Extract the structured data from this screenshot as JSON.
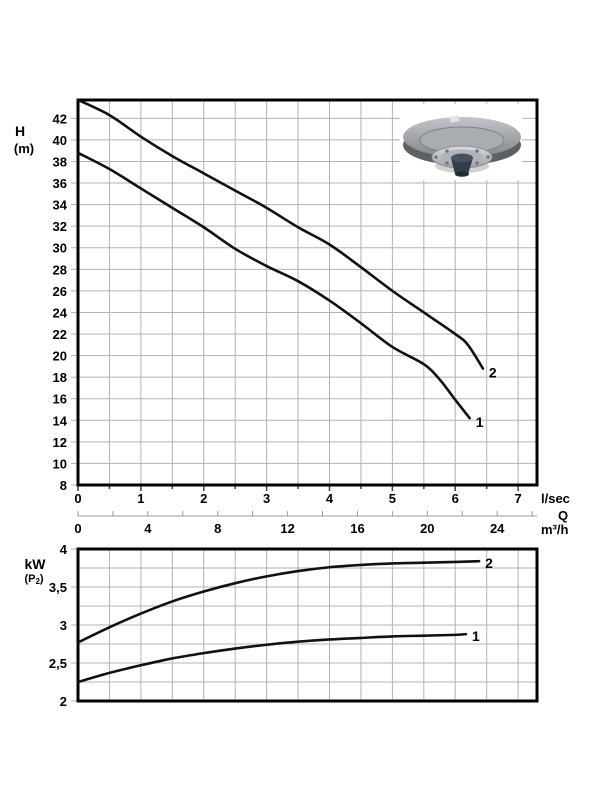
{
  "page": {
    "background": "#ffffff"
  },
  "colors": {
    "grid": "#b3b3b3",
    "border": "#000000",
    "curve": "#111111",
    "q_axis": "#999999",
    "tick_mark": "#444444"
  },
  "pump_image": {
    "description": "pump impeller photo"
  },
  "chart_data": [
    {
      "type": "line",
      "title": "",
      "ylabel_line1": "H",
      "ylabel_line2": "(m)",
      "x_unit_label": "l/sec",
      "x2_unit_line1": "Q",
      "x2_unit_line2": "m³/h",
      "xlim": [
        0,
        7.3
      ],
      "ylim": [
        8,
        43.7
      ],
      "grid": true,
      "x_grid": [
        0.5,
        1,
        1.5,
        2,
        2.5,
        3,
        3.5,
        4,
        4.5,
        5,
        5.5,
        6,
        6.5,
        7
      ],
      "y_grid": [
        10,
        12,
        14,
        16,
        18,
        20,
        22,
        24,
        26,
        28,
        30,
        32,
        34,
        36,
        38,
        40,
        42
      ],
      "y_ticks": [
        {
          "v": 42,
          "label": "42"
        },
        {
          "v": 40,
          "label": "40"
        },
        {
          "v": 38,
          "label": "38"
        },
        {
          "v": 36,
          "label": "36"
        },
        {
          "v": 34,
          "label": "34"
        },
        {
          "v": 32,
          "label": "32"
        },
        {
          "v": 30,
          "label": "30"
        },
        {
          "v": 28,
          "label": "28"
        },
        {
          "v": 26,
          "label": "26"
        },
        {
          "v": 24,
          "label": "24"
        },
        {
          "v": 22,
          "label": "22"
        },
        {
          "v": 20,
          "label": "20"
        },
        {
          "v": 18,
          "label": "18"
        },
        {
          "v": 16,
          "label": "16"
        },
        {
          "v": 14,
          "label": "14"
        },
        {
          "v": 12,
          "label": "12"
        },
        {
          "v": 10,
          "label": "10"
        },
        {
          "v": 8,
          "label": "8"
        }
      ],
      "x_ticks": [
        {
          "v": 0,
          "label": "0"
        },
        {
          "v": 1,
          "label": "1"
        },
        {
          "v": 2,
          "label": "2"
        },
        {
          "v": 3,
          "label": "3"
        },
        {
          "v": 4,
          "label": "4"
        },
        {
          "v": 5,
          "label": "5"
        },
        {
          "v": 6,
          "label": "6"
        },
        {
          "v": 7,
          "label": "7"
        }
      ],
      "x_minor_ticks": [
        0,
        0.5,
        1,
        1.5,
        2,
        2.5,
        3,
        3.5,
        4,
        4.5,
        5,
        5.5,
        6,
        6.5,
        7
      ],
      "x2_axis": {
        "scale_lsec_per_unit": 0.27778,
        "minor_ticks": [
          0,
          2,
          4,
          6,
          8,
          10,
          12,
          14,
          16,
          18,
          20,
          22,
          24,
          26
        ],
        "labeled_ticks": [
          {
            "v": 0,
            "label": "0"
          },
          {
            "v": 4,
            "label": "4"
          },
          {
            "v": 8,
            "label": "8"
          },
          {
            "v": 12,
            "label": "12"
          },
          {
            "v": 16,
            "label": "16"
          },
          {
            "v": 20,
            "label": "20"
          },
          {
            "v": 24,
            "label": "24"
          }
        ]
      },
      "series": [
        {
          "name": "1",
          "points": [
            [
              0,
              38.8
            ],
            [
              0.5,
              37.3
            ],
            [
              1,
              35.5
            ],
            [
              1.5,
              33.7
            ],
            [
              2,
              31.9
            ],
            [
              2.5,
              29.9
            ],
            [
              3,
              28.3
            ],
            [
              3.5,
              26.9
            ],
            [
              4,
              25.1
            ],
            [
              4.5,
              23.0
            ],
            [
              5,
              20.8
            ],
            [
              5.5,
              19.2
            ],
            [
              5.75,
              17.8
            ],
            [
              6,
              15.9
            ],
            [
              6.23,
              14.2
            ]
          ]
        },
        {
          "name": "2",
          "points": [
            [
              0,
              43.7
            ],
            [
              0.5,
              42.3
            ],
            [
              1,
              40.3
            ],
            [
              1.5,
              38.5
            ],
            [
              2,
              36.9
            ],
            [
              2.5,
              35.3
            ],
            [
              3,
              33.7
            ],
            [
              3.5,
              31.9
            ],
            [
              4,
              30.3
            ],
            [
              4.5,
              28.2
            ],
            [
              5,
              26.0
            ],
            [
              5.5,
              24.0
            ],
            [
              6,
              22.0
            ],
            [
              6.2,
              21.0
            ],
            [
              6.44,
              18.8
            ]
          ]
        }
      ],
      "label_dy": 4
    },
    {
      "type": "line",
      "title": "",
      "ylabel_line1": "kW",
      "ylabel_sub": {
        "prefix": "(P",
        "sub": "2",
        "suffix": ")"
      },
      "xlim": [
        0,
        7.3
      ],
      "ylim": [
        2,
        4
      ],
      "grid": true,
      "x_grid": [
        0.5,
        1,
        1.5,
        2,
        2.5,
        3,
        3.5,
        4,
        4.5,
        5,
        5.5,
        6,
        6.5,
        7
      ],
      "y_grid": [
        2.25,
        2.5,
        2.75,
        3,
        3.25,
        3.5,
        3.75
      ],
      "y_ticks": [
        {
          "v": 4,
          "label": "4"
        },
        {
          "v": 3.5,
          "label": "3,5"
        },
        {
          "v": 3,
          "label": "3"
        },
        {
          "v": 2.5,
          "label": "2,5"
        },
        {
          "v": 2,
          "label": "2"
        }
      ],
      "series": [
        {
          "name": "1",
          "points": [
            [
              0,
              2.25
            ],
            [
              0.5,
              2.37
            ],
            [
              1,
              2.47
            ],
            [
              1.5,
              2.56
            ],
            [
              2,
              2.63
            ],
            [
              2.5,
              2.69
            ],
            [
              3,
              2.74
            ],
            [
              3.5,
              2.78
            ],
            [
              4,
              2.81
            ],
            [
              4.5,
              2.83
            ],
            [
              5,
              2.85
            ],
            [
              5.5,
              2.86
            ],
            [
              6,
              2.87
            ],
            [
              6.17,
              2.88
            ]
          ]
        },
        {
          "name": "2",
          "points": [
            [
              0,
              2.77
            ],
            [
              0.5,
              2.97
            ],
            [
              1,
              3.15
            ],
            [
              1.5,
              3.31
            ],
            [
              2,
              3.44
            ],
            [
              2.5,
              3.55
            ],
            [
              3,
              3.64
            ],
            [
              3.5,
              3.71
            ],
            [
              4,
              3.76
            ],
            [
              4.5,
              3.79
            ],
            [
              5,
              3.81
            ],
            [
              5.5,
              3.82
            ],
            [
              6,
              3.83
            ],
            [
              6.38,
              3.84
            ]
          ]
        }
      ],
      "label_dy": 2
    }
  ]
}
